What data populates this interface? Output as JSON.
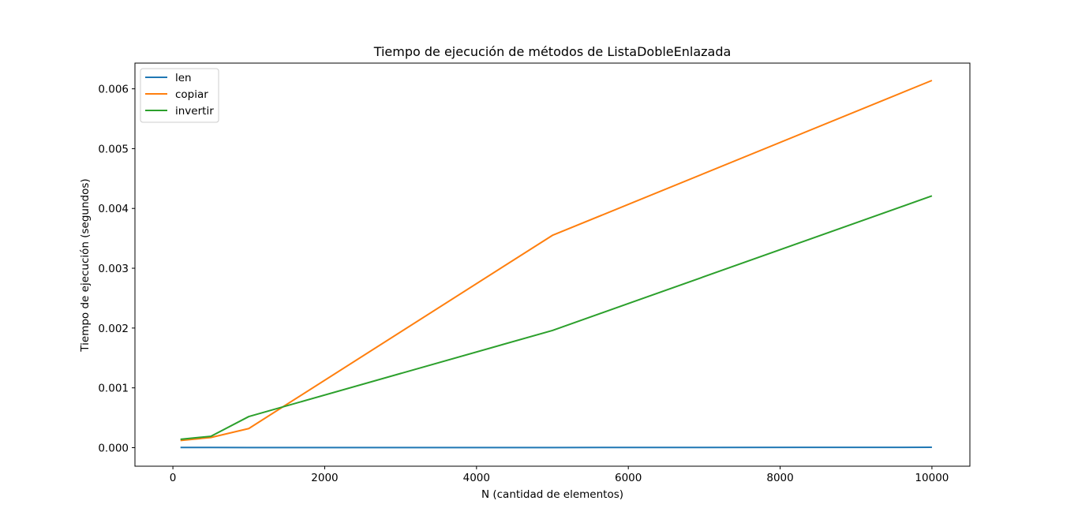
{
  "chart_data": {
    "type": "line",
    "title": "Tiempo de ejecución de métodos de ListaDobleEnlazada",
    "xlabel": "N (cantidad de elementos)",
    "ylabel": "Tiempo de ejecución (segundos)",
    "xlim": [
      -500,
      10500
    ],
    "ylim": [
      -0.00031,
      0.00643
    ],
    "xticks": [
      0,
      2000,
      4000,
      6000,
      8000,
      10000
    ],
    "xtick_labels": [
      "0",
      "2000",
      "4000",
      "6000",
      "8000",
      "10000"
    ],
    "yticks": [
      0,
      0.001,
      0.002,
      0.003,
      0.004,
      0.005,
      0.006
    ],
    "ytick_labels": [
      "0.000",
      "0.001",
      "0.002",
      "0.003",
      "0.004",
      "0.005",
      "0.006"
    ],
    "grid": false,
    "legend_position": "upper-left",
    "x": [
      100,
      500,
      1000,
      5000,
      10000
    ],
    "series": [
      {
        "name": "len",
        "color": "#1f77b4",
        "values": [
          4e-06,
          3e-06,
          2e-06,
          2e-06,
          6e-06
        ]
      },
      {
        "name": "copiar",
        "color": "#ff7f0e",
        "values": [
          0.00012,
          0.00017,
          0.00032,
          0.00355,
          0.00614
        ]
      },
      {
        "name": "invertir",
        "color": "#2ca02c",
        "values": [
          0.00014,
          0.00019,
          0.00052,
          0.00196,
          0.00421
        ]
      }
    ]
  }
}
